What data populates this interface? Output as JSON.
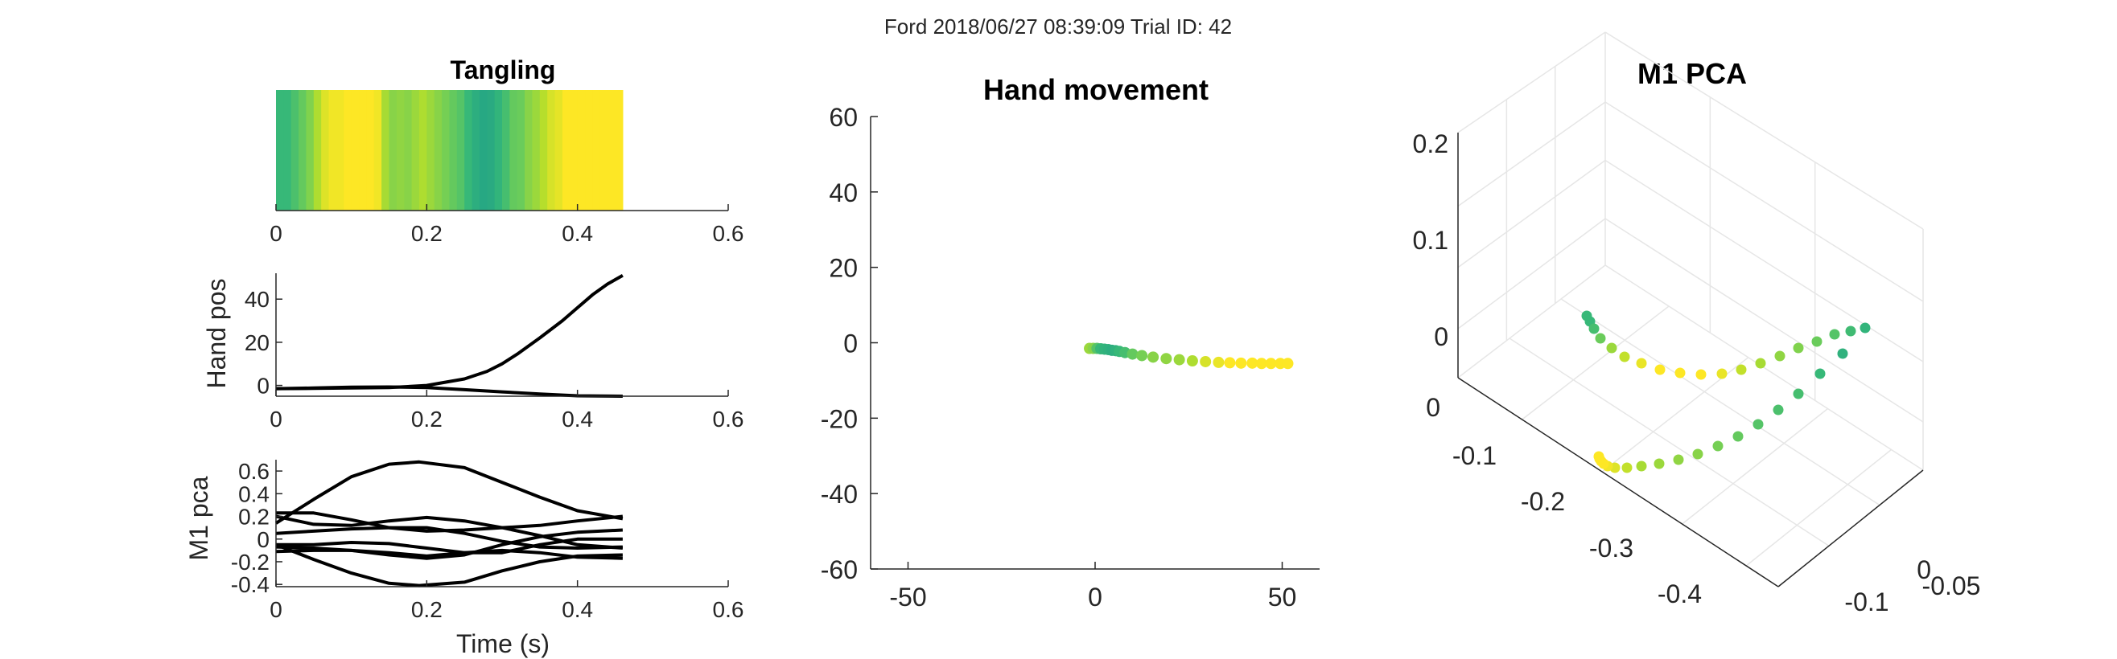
{
  "figure_title": "Ford 2018/06/27 08:39:09 Trial ID: 42",
  "colors": {
    "ink": "#262626",
    "line": "#000000",
    "grid": "#e6e6e6"
  },
  "chart_data": [
    {
      "id": "tangling",
      "type": "heatmap",
      "title": "Tangling",
      "xlabel": "",
      "ylabel": "",
      "xlim": [
        0,
        0.6
      ],
      "xticks": [
        "0",
        "0.2",
        "0.4",
        "0.6"
      ],
      "colormap": "viridis",
      "time_end": 0.46,
      "stripe_count": 46,
      "stripe_values": [
        0.45,
        0.45,
        0.52,
        0.6,
        0.68,
        0.8,
        0.92,
        0.97,
        0.97,
        1.0,
        1.0,
        1.0,
        1.0,
        0.97,
        0.78,
        0.7,
        0.72,
        0.7,
        0.75,
        0.8,
        0.75,
        0.7,
        0.65,
        0.6,
        0.55,
        0.45,
        0.38,
        0.33,
        0.35,
        0.42,
        0.5,
        0.6,
        0.62,
        0.7,
        0.75,
        0.82,
        0.9,
        0.94,
        1.0,
        1.0,
        1.0,
        1.0,
        1.0,
        1.0,
        1.0,
        1.0
      ]
    },
    {
      "id": "hand-pos",
      "type": "line",
      "title": "",
      "xlabel": "",
      "ylabel": "Hand pos",
      "xlim": [
        0,
        0.6
      ],
      "ylim": [
        -5,
        52
      ],
      "xticks": [
        "0",
        "0.2",
        "0.4",
        "0.6"
      ],
      "yticks": [
        "0",
        "20",
        "40"
      ],
      "ytick_values": [
        0,
        20,
        40
      ],
      "series": [
        {
          "x": [
            0,
            0.05,
            0.1,
            0.15,
            0.2,
            0.25,
            0.28,
            0.3,
            0.32,
            0.35,
            0.38,
            0.4,
            0.42,
            0.44,
            0.46
          ],
          "values": [
            -1.5,
            -1.4,
            -1.2,
            -1,
            0,
            3,
            6.5,
            10,
            14.5,
            22,
            30,
            36,
            42,
            47,
            51
          ]
        },
        {
          "x": [
            0,
            0.05,
            0.1,
            0.15,
            0.2,
            0.25,
            0.3,
            0.35,
            0.4,
            0.46
          ],
          "values": [
            -1.5,
            -1.2,
            -0.8,
            -0.7,
            -1,
            -2,
            -3,
            -4,
            -4.8,
            -5
          ]
        }
      ]
    },
    {
      "id": "m1-pca-time",
      "type": "line",
      "title": "",
      "xlabel": "Time (s)",
      "ylabel": "M1 pca",
      "xlim": [
        0,
        0.6
      ],
      "ylim": [
        -0.42,
        0.7
      ],
      "xticks": [
        "0",
        "0.2",
        "0.4",
        "0.6"
      ],
      "yticks": [
        "-0.4",
        "-0.2",
        "0",
        "0.2",
        "0.4",
        "0.6"
      ],
      "ytick_values": [
        -0.4,
        -0.2,
        0,
        0.2,
        0.4,
        0.6
      ],
      "series": [
        {
          "x": [
            0,
            0.05,
            0.1,
            0.15,
            0.19,
            0.25,
            0.3,
            0.35,
            0.4,
            0.46
          ],
          "values": [
            0.14,
            0.35,
            0.55,
            0.66,
            0.68,
            0.63,
            0.5,
            0.37,
            0.25,
            0.18
          ]
        },
        {
          "x": [
            0,
            0.05,
            0.1,
            0.15,
            0.19,
            0.25,
            0.3,
            0.35,
            0.4,
            0.46
          ],
          "values": [
            -0.05,
            -0.18,
            -0.3,
            -0.39,
            -0.41,
            -0.38,
            -0.28,
            -0.2,
            -0.15,
            -0.14
          ]
        },
        {
          "x": [
            0,
            0.05,
            0.1,
            0.15,
            0.2,
            0.25,
            0.3,
            0.35,
            0.4,
            0.46
          ],
          "values": [
            0.23,
            0.23,
            0.17,
            0.1,
            0.07,
            0.08,
            0.1,
            0.12,
            0.16,
            0.2
          ]
        },
        {
          "x": [
            0,
            0.05,
            0.1,
            0.15,
            0.2,
            0.25,
            0.3,
            0.35,
            0.4,
            0.46
          ],
          "values": [
            0.2,
            0.13,
            0.12,
            0.16,
            0.19,
            0.16,
            0.1,
            0.03,
            -0.05,
            -0.08
          ]
        },
        {
          "x": [
            0,
            0.05,
            0.1,
            0.15,
            0.2,
            0.25,
            0.3,
            0.35,
            0.4,
            0.46
          ],
          "values": [
            0.05,
            0.07,
            0.09,
            0.1,
            0.1,
            0.05,
            -0.02,
            -0.07,
            -0.08,
            -0.07
          ]
        },
        {
          "x": [
            0,
            0.05,
            0.1,
            0.15,
            0.2,
            0.25,
            0.3,
            0.35,
            0.4,
            0.46
          ],
          "values": [
            -0.07,
            -0.08,
            -0.1,
            -0.14,
            -0.17,
            -0.14,
            -0.05,
            0.02,
            0.06,
            0.08
          ]
        },
        {
          "x": [
            0,
            0.05,
            0.1,
            0.15,
            0.2,
            0.25,
            0.3,
            0.35,
            0.4,
            0.46
          ],
          "values": [
            -0.05,
            -0.05,
            -0.03,
            -0.04,
            -0.08,
            -0.12,
            -0.12,
            -0.05,
            0.0,
            0.0
          ]
        },
        {
          "x": [
            0,
            0.05,
            0.1,
            0.15,
            0.2,
            0.25,
            0.3,
            0.35,
            0.4,
            0.46
          ],
          "values": [
            -0.11,
            -0.1,
            -0.1,
            -0.12,
            -0.15,
            -0.12,
            -0.1,
            -0.12,
            -0.16,
            -0.17
          ]
        }
      ]
    },
    {
      "id": "hand-movement",
      "type": "scatter",
      "title": "Hand movement",
      "xlabel": "",
      "ylabel": "",
      "xlim": [
        -60,
        60
      ],
      "ylim": [
        -60,
        60
      ],
      "xticks": [
        "-50",
        "0",
        "50"
      ],
      "xtick_values": [
        -50,
        0,
        50
      ],
      "yticks": [
        "60",
        "40",
        "20",
        "0",
        "-20",
        "-40",
        "-60"
      ],
      "ytick_values": [
        60,
        40,
        20,
        0,
        -20,
        -40,
        -60
      ],
      "colormap": "viridis",
      "points": [
        {
          "x": -1.5,
          "y": -1.5,
          "c": 0.75
        },
        {
          "x": -0.5,
          "y": -1.5,
          "c": 0.7
        },
        {
          "x": 0.5,
          "y": -1.5,
          "c": 0.55
        },
        {
          "x": 1.5,
          "y": -1.6,
          "c": 0.45
        },
        {
          "x": 2.5,
          "y": -1.7,
          "c": 0.42
        },
        {
          "x": 3.5,
          "y": -1.8,
          "c": 0.4
        },
        {
          "x": 4.5,
          "y": -2,
          "c": 0.38
        },
        {
          "x": 5.5,
          "y": -2.1,
          "c": 0.4
        },
        {
          "x": 6.5,
          "y": -2.3,
          "c": 0.45
        },
        {
          "x": 8,
          "y": -2.6,
          "c": 0.5
        },
        {
          "x": 10,
          "y": -3,
          "c": 0.6
        },
        {
          "x": 12.5,
          "y": -3.4,
          "c": 0.65
        },
        {
          "x": 15.5,
          "y": -3.8,
          "c": 0.7
        },
        {
          "x": 19,
          "y": -4.2,
          "c": 0.72
        },
        {
          "x": 22.5,
          "y": -4.5,
          "c": 0.75
        },
        {
          "x": 26,
          "y": -4.8,
          "c": 0.8
        },
        {
          "x": 29.5,
          "y": -5,
          "c": 0.9
        },
        {
          "x": 33,
          "y": -5.2,
          "c": 0.95
        },
        {
          "x": 36,
          "y": -5.3,
          "c": 1.0
        },
        {
          "x": 39,
          "y": -5.4,
          "c": 1.0
        },
        {
          "x": 42,
          "y": -5.4,
          "c": 1.0
        },
        {
          "x": 44.5,
          "y": -5.5,
          "c": 1.0
        },
        {
          "x": 47,
          "y": -5.5,
          "c": 1.0
        },
        {
          "x": 49.5,
          "y": -5.5,
          "c": 1.0
        },
        {
          "x": 51.5,
          "y": -5.5,
          "c": 1.0
        }
      ]
    },
    {
      "id": "m1-pca-3d",
      "type": "scatter",
      "title": "M1 PCA",
      "xlabel": "",
      "ylabel": "",
      "zticks": [
        "0.2",
        "0.1",
        "0"
      ],
      "yticks": [
        "0",
        "-0.1",
        "-0.2",
        "-0.3",
        "-0.4"
      ],
      "xticks": [
        "0",
        "-0.05",
        "-0.1"
      ],
      "colormap": "viridis",
      "points": [
        {
          "c": 0.45
        },
        {
          "c": 0.45
        },
        {
          "c": 0.5
        },
        {
          "c": 0.62
        },
        {
          "c": 0.75
        },
        {
          "c": 0.85
        },
        {
          "c": 0.95
        },
        {
          "c": 1.0
        },
        {
          "c": 1.0
        },
        {
          "c": 1.0
        },
        {
          "c": 0.95
        },
        {
          "c": 0.85
        },
        {
          "c": 0.78
        },
        {
          "c": 0.72
        },
        {
          "c": 0.68
        },
        {
          "c": 0.62
        },
        {
          "c": 0.55
        },
        {
          "c": 0.48
        },
        {
          "c": 0.42
        },
        {
          "c": 0.4
        },
        {
          "c": 0.45
        },
        {
          "c": 0.5
        },
        {
          "c": 0.52
        },
        {
          "c": 0.55
        },
        {
          "c": 0.6
        },
        {
          "c": 0.65
        },
        {
          "c": 0.7
        },
        {
          "c": 0.72
        },
        {
          "c": 0.75
        },
        {
          "c": 0.78
        },
        {
          "c": 0.85
        },
        {
          "c": 0.92
        },
        {
          "c": 0.97
        },
        {
          "c": 1.0
        },
        {
          "c": 1.0
        },
        {
          "c": 1.0
        },
        {
          "c": 1.0
        }
      ]
    }
  ]
}
